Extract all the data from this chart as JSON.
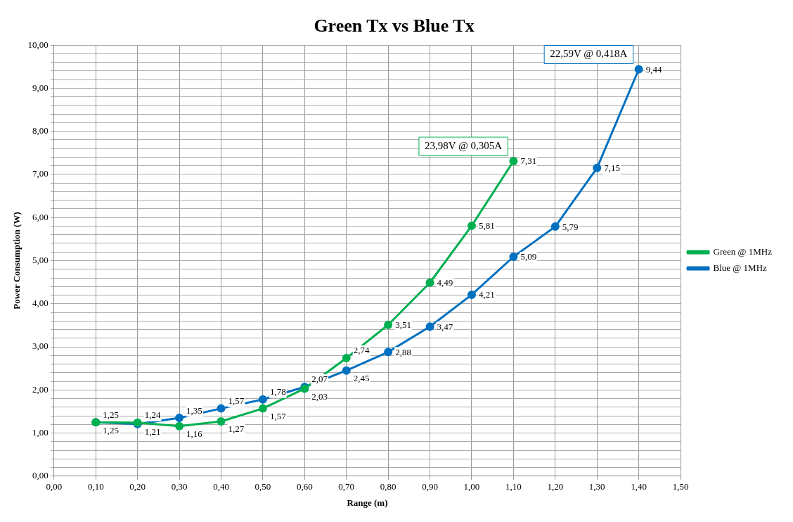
{
  "chart_data": {
    "type": "line",
    "title": "Green Tx vs Blue Tx",
    "xlabel": "Range (m)",
    "ylabel": "Power Consumption (W)",
    "series": [
      {
        "name": "Green @ 1MHz",
        "color": "#00b050",
        "x": [
          0.1,
          0.2,
          0.3,
          0.4,
          0.5,
          0.6,
          0.7,
          0.8,
          0.9,
          1.0,
          1.1
        ],
        "values": [
          1.25,
          1.24,
          1.16,
          1.27,
          1.57,
          2.03,
          2.74,
          3.51,
          4.49,
          5.81,
          7.31
        ],
        "value_labels": [
          "1,25",
          "1,24",
          "1,16",
          "1,27",
          "1,57",
          "2,03",
          "2,74",
          "3,51",
          "4,49",
          "5,81",
          "7,31"
        ]
      },
      {
        "name": "Blue @ 1MHz",
        "color": "#0070c0",
        "x": [
          0.1,
          0.2,
          0.3,
          0.4,
          0.5,
          0.6,
          0.7,
          0.8,
          0.9,
          1.0,
          1.1,
          1.2,
          1.3,
          1.4
        ],
        "values": [
          1.25,
          1.21,
          1.35,
          1.57,
          1.78,
          2.07,
          2.45,
          2.88,
          3.47,
          4.21,
          5.09,
          5.79,
          7.15,
          9.44
        ],
        "value_labels": [
          "1,25",
          "1,21",
          "1,35",
          "1,57",
          "1,78",
          "2,07",
          "2,45",
          "2,88",
          "3,47",
          "4,21",
          "5,09",
          "5,79",
          "7,15",
          "9,44"
        ]
      }
    ],
    "xlim": [
      0,
      1.5
    ],
    "xticks": [
      {
        "value": 0,
        "label": "0,00"
      },
      {
        "value": 0.1,
        "label": "0,10"
      },
      {
        "value": 0.2,
        "label": "0,20"
      },
      {
        "value": 0.3,
        "label": "0,30"
      },
      {
        "value": 0.4,
        "label": "0,40"
      },
      {
        "value": 0.5,
        "label": "0,50"
      },
      {
        "value": 0.6,
        "label": "0,60"
      },
      {
        "value": 0.7,
        "label": "0,70"
      },
      {
        "value": 0.8,
        "label": "0,80"
      },
      {
        "value": 0.9,
        "label": "0,90"
      },
      {
        "value": 1.0,
        "label": "1,00"
      },
      {
        "value": 1.1,
        "label": "1,10"
      },
      {
        "value": 1.2,
        "label": "1,20"
      },
      {
        "value": 1.3,
        "label": "1,30"
      },
      {
        "value": 1.4,
        "label": "1,40"
      },
      {
        "value": 1.5,
        "label": "1,50"
      }
    ],
    "ylim": [
      0,
      10
    ],
    "yticks": [
      {
        "value": 0,
        "label": "0,00"
      },
      {
        "value": 0.2,
        "label": null
      },
      {
        "value": 0.4,
        "label": null
      },
      {
        "value": 0.6,
        "label": null
      },
      {
        "value": 0.8,
        "label": null
      },
      {
        "value": 1,
        "label": "1,00"
      },
      {
        "value": 1.2,
        "label": null
      },
      {
        "value": 1.4,
        "label": null
      },
      {
        "value": 1.6,
        "label": null
      },
      {
        "value": 1.8,
        "label": null
      },
      {
        "value": 2,
        "label": "2,00"
      },
      {
        "value": 2.2,
        "label": null
      },
      {
        "value": 2.4,
        "label": null
      },
      {
        "value": 2.6,
        "label": null
      },
      {
        "value": 2.8,
        "label": null
      },
      {
        "value": 3,
        "label": "3,00"
      },
      {
        "value": 3.2,
        "label": null
      },
      {
        "value": 3.4,
        "label": null
      },
      {
        "value": 3.6,
        "label": null
      },
      {
        "value": 3.8,
        "label": null
      },
      {
        "value": 4,
        "label": "4,00"
      },
      {
        "value": 4.2,
        "label": null
      },
      {
        "value": 4.4,
        "label": null
      },
      {
        "value": 4.6,
        "label": null
      },
      {
        "value": 4.8,
        "label": null
      },
      {
        "value": 5,
        "label": "5,00"
      },
      {
        "value": 5.2,
        "label": null
      },
      {
        "value": 5.4,
        "label": null
      },
      {
        "value": 5.6,
        "label": null
      },
      {
        "value": 5.8,
        "label": null
      },
      {
        "value": 6,
        "label": "6,00"
      },
      {
        "value": 6.2,
        "label": null
      },
      {
        "value": 6.4,
        "label": null
      },
      {
        "value": 6.6,
        "label": null
      },
      {
        "value": 6.8,
        "label": null
      },
      {
        "value": 7,
        "label": "7,00"
      },
      {
        "value": 7.2,
        "label": null
      },
      {
        "value": 7.4,
        "label": null
      },
      {
        "value": 7.6,
        "label": null
      },
      {
        "value": 7.8,
        "label": null
      },
      {
        "value": 8,
        "label": "8,00"
      },
      {
        "value": 8.2,
        "label": null
      },
      {
        "value": 8.4,
        "label": null
      },
      {
        "value": 8.6,
        "label": null
      },
      {
        "value": 8.8,
        "label": null
      },
      {
        "value": 9,
        "label": "9,00"
      },
      {
        "value": 9.2,
        "label": null
      },
      {
        "value": 9.4,
        "label": null
      },
      {
        "value": 9.6,
        "label": null
      },
      {
        "value": 9.8,
        "label": null
      },
      {
        "value": 10,
        "label": "10,00"
      }
    ],
    "annotations": [
      {
        "text": "23,98V @ 0,305A",
        "x": 1.1,
        "y": 7.31
      },
      {
        "text": "22,59V @ 0,418A",
        "x": 1.4,
        "y": 9.44
      }
    ],
    "grid": true,
    "legend": "right",
    "marker": "circle",
    "line_style": "solid"
  }
}
